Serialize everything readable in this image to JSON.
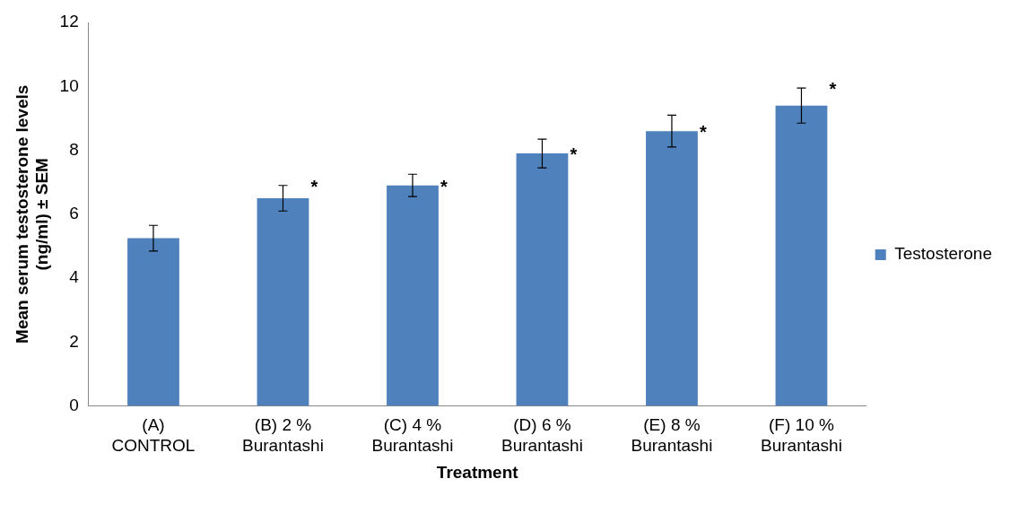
{
  "chart_data": {
    "type": "bar",
    "xlabel": "Treatment",
    "ylabel": "Mean serum testosterone levels (ng/ml) ± SEM",
    "categories": [
      "(A)\nCONTROL",
      "(B) 2 %\nBurantashi",
      "(C) 4 %\nBurantashi",
      "(D) 6 %\nBurantashi",
      "(E) 8 %\nBurantashi",
      "(F) 10 %\nBurantashi"
    ],
    "series": [
      {
        "name": "Testosterone",
        "color": "#4f81bd",
        "values": [
          5.25,
          6.5,
          6.9,
          7.9,
          8.6,
          9.4
        ],
        "errors": [
          0.4,
          0.4,
          0.35,
          0.45,
          0.5,
          0.55
        ]
      }
    ],
    "ylim": [
      0,
      12
    ],
    "yticks": [
      0,
      2,
      4,
      6,
      8,
      10,
      12
    ],
    "grid": false,
    "legend": "right",
    "annotations": [
      {
        "text": "*",
        "x": "(B) 2 %\nBurantashi",
        "y": 6.9
      },
      {
        "text": "*",
        "x": "(C) 4 %\nBurantashi",
        "y": 6.9
      },
      {
        "text": "*",
        "x": "(D) 6 %\nBurantashi",
        "y": 7.9
      },
      {
        "text": "*",
        "x": "(E) 8 %\nBurantashi",
        "y": 8.6
      },
      {
        "text": "*",
        "x": "(F) 10 %\nBurantashi",
        "y": 9.95
      }
    ]
  }
}
